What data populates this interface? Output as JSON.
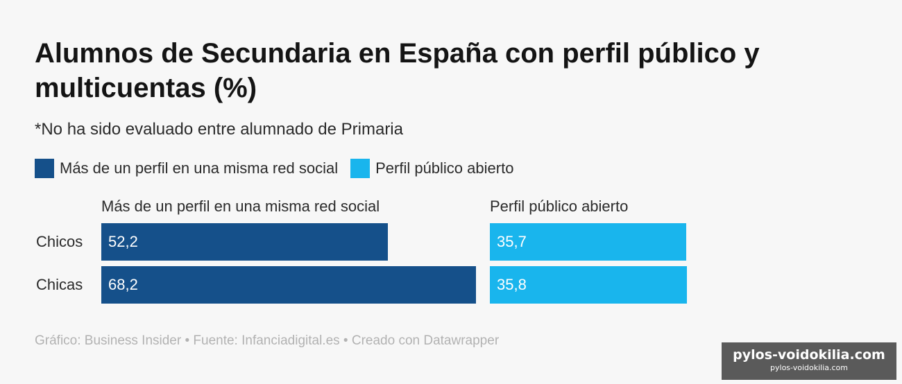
{
  "chart_data": {
    "type": "bar",
    "title": "Alumnos de Secundaria en España con perfil público y multicuentas (%)",
    "subtitle": "*No ha sido evaluado entre alumnado de Primaria",
    "categories": [
      "Chicos",
      "Chicas"
    ],
    "series": [
      {
        "name": "Más de un perfil en una misma red social",
        "values": [
          52.2,
          68.2
        ],
        "labels": [
          "52,2",
          "68,2"
        ],
        "color": "#15508a"
      },
      {
        "name": "Perfil público abierto",
        "values": [
          35.7,
          35.8
        ],
        "labels": [
          "35,7",
          "35,8"
        ],
        "color": "#19b5ed"
      }
    ],
    "legend_placement": "top-left",
    "grid": false,
    "footer": "Gráfico: Business Insider • Fuente: Infanciadigital.es • Creado con Datawrapper"
  },
  "watermark": {
    "line1": "pylos-voidokilia.com",
    "line2": "pylos-voidokilia.com"
  }
}
